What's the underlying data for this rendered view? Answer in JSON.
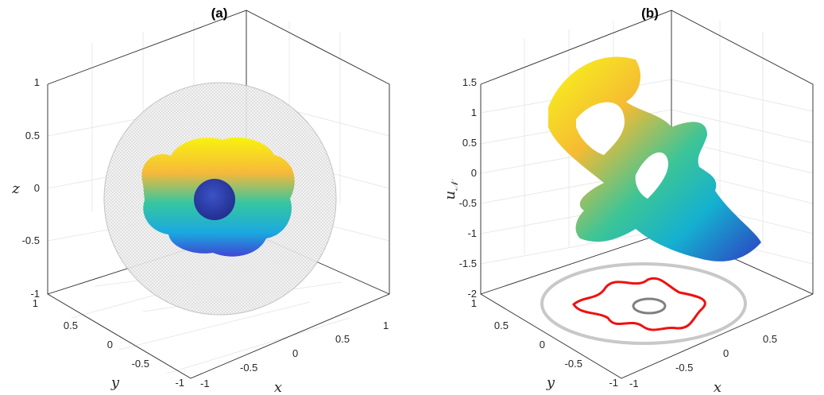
{
  "colors": {
    "sphere_mesh": "#cfcfcf",
    "inner_ball": "#2b3fa8",
    "projection_outer": "#c8c8c8",
    "projection_mid": "#ee1111",
    "projection_inner": "#808080"
  },
  "chart_data": [
    {
      "type": "surface3d",
      "title": "(a)",
      "xlabel": "x",
      "ylabel": "y",
      "zlabel": "z",
      "xlim": [
        -1,
        1
      ],
      "ylim": [
        -1,
        1
      ],
      "zlim": [
        -1,
        1
      ],
      "grid": true,
      "x_ticks": [
        "-1",
        "-0.5",
        "0",
        "0.5",
        "1"
      ],
      "y_ticks": [
        "-1",
        "-0.5",
        "0",
        "0.5",
        "1"
      ],
      "z_ticks": [
        "-1",
        "-0.5",
        "0",
        "0.5",
        "1"
      ],
      "surfaces": [
        {
          "kind": "outer-sphere",
          "radius": 1
        },
        {
          "kind": "flower-blob",
          "colormap": "parula"
        },
        {
          "kind": "inner-ball",
          "radius": 0.3
        }
      ]
    },
    {
      "type": "surface3d",
      "title": "(b)",
      "xlabel": "x",
      "ylabel": "y",
      "zlabel": "u_N",
      "xlim": [
        -1,
        1
      ],
      "ylim": [
        -1,
        1
      ],
      "zlim": [
        -2,
        1.5
      ],
      "grid": true,
      "x_ticks": [
        "-1",
        "-0.5",
        "0",
        "0.5"
      ],
      "y_ticks": [
        "-1",
        "-0.5",
        "0",
        "0.5",
        "1"
      ],
      "z_ticks": [
        "-2",
        "-1.5",
        "-1",
        "-0.5",
        "0",
        "0.5",
        "1",
        "1.5"
      ],
      "surfaces": [
        {
          "kind": "solution-surface",
          "colormap": "parula"
        },
        {
          "kind": "boundary-projection-outer",
          "radius": 1
        },
        {
          "kind": "boundary-projection-flower"
        },
        {
          "kind": "boundary-projection-inner",
          "radius": 0.3
        }
      ]
    }
  ]
}
